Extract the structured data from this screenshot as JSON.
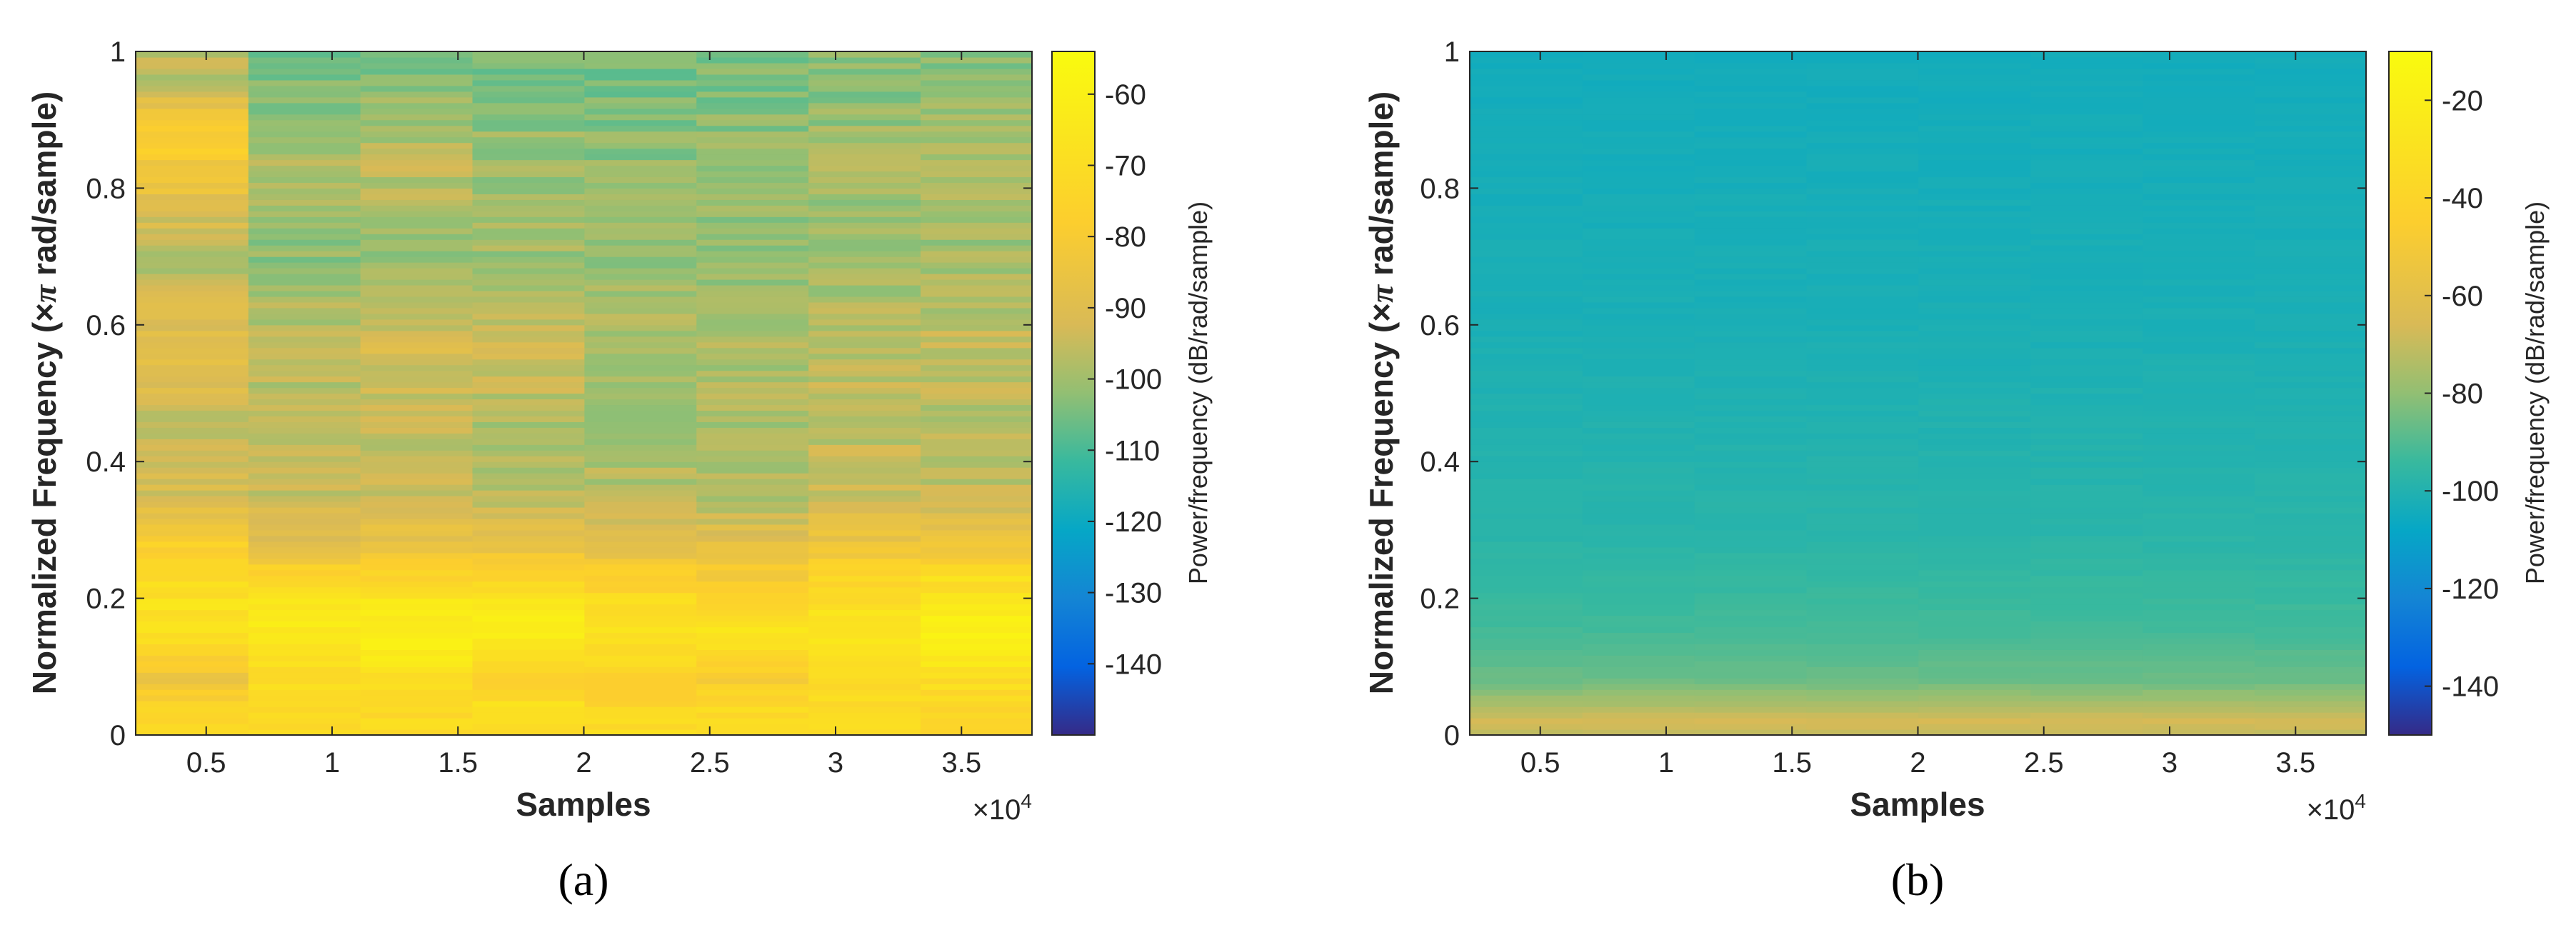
{
  "chart_data": [
    {
      "type": "heatmap",
      "panel_label": "(a)",
      "xlabel": "Samples",
      "xscale_label": "×10",
      "xscale_exponent": "4",
      "ylabel_prefix": "Normalized Frequency  (×",
      "ylabel_pi": "π",
      "ylabel_suffix": " rad/sample)",
      "colorbar_label": "Power/frequency (dB/rad/sample)",
      "xlim": [
        0.22,
        3.78
      ],
      "ylim": [
        0,
        1
      ],
      "xticks": [
        0.5,
        1,
        1.5,
        2,
        2.5,
        3,
        3.5
      ],
      "xtick_labels": [
        "0.5",
        "1",
        "1.5",
        "2",
        "2.5",
        "3",
        "3.5"
      ],
      "yticks": [
        0,
        0.2,
        0.4,
        0.6,
        0.8,
        1
      ],
      "ytick_labels": [
        "0",
        "0.2",
        "0.4",
        "0.6",
        "0.8",
        "1"
      ],
      "clim": [
        -150,
        -54
      ],
      "cticks": [
        -140,
        -130,
        -120,
        -110,
        -100,
        -90,
        -80,
        -70,
        -60
      ],
      "ctick_labels": [
        "-140",
        "-130",
        "-120",
        "-110",
        "-100",
        "-90",
        "-80",
        "-70",
        "-60"
      ],
      "segment_centers": [
        0.445,
        0.89,
        1.335,
        1.78,
        2.225,
        2.67,
        3.115,
        3.56
      ],
      "bands": [
        {
          "freq": 0.04,
          "power": [
            -72,
            -70,
            -71,
            -69,
            -72,
            -71,
            -70,
            -72
          ]
        },
        {
          "freq": 0.08,
          "power": [
            -86,
            -70,
            -70,
            -75,
            -80,
            -78,
            -72,
            -70
          ]
        },
        {
          "freq": 0.12,
          "power": [
            -74,
            -66,
            -64,
            -66,
            -70,
            -72,
            -66,
            -64
          ]
        },
        {
          "freq": 0.155,
          "power": [
            -66,
            -62,
            -60,
            -62,
            -68,
            -66,
            -64,
            -60
          ]
        },
        {
          "freq": 0.19,
          "power": [
            -68,
            -66,
            -64,
            -64,
            -70,
            -72,
            -70,
            -66
          ]
        },
        {
          "freq": 0.235,
          "power": [
            -72,
            -74,
            -76,
            -76,
            -78,
            -80,
            -76,
            -70
          ]
        },
        {
          "freq": 0.28,
          "power": [
            -78,
            -88,
            -86,
            -86,
            -90,
            -88,
            -84,
            -84
          ]
        },
        {
          "freq": 0.35,
          "power": [
            -92,
            -95,
            -94,
            -96,
            -97,
            -98,
            -94,
            -96
          ]
        },
        {
          "freq": 0.45,
          "power": [
            -95,
            -98,
            -96,
            -98,
            -100,
            -99,
            -96,
            -97
          ]
        },
        {
          "freq": 0.57,
          "power": [
            -88,
            -96,
            -92,
            -94,
            -98,
            -98,
            -96,
            -95
          ]
        },
        {
          "freq": 0.7,
          "power": [
            -98,
            -102,
            -100,
            -100,
            -101,
            -102,
            -101,
            -100
          ]
        },
        {
          "freq": 0.84,
          "power": [
            -82,
            -98,
            -96,
            -100,
            -102,
            -101,
            -99,
            -98
          ]
        },
        {
          "freq": 0.87,
          "power": [
            -76,
            -100,
            -98,
            -101,
            -103,
            -102,
            -100,
            -99
          ]
        },
        {
          "freq": 0.96,
          "power": [
            -96,
            -104,
            -103,
            -104,
            -105,
            -104,
            -103,
            -103
          ]
        }
      ]
    },
    {
      "type": "heatmap",
      "panel_label": "(b)",
      "xlabel": "Samples",
      "xscale_label": "×10",
      "xscale_exponent": "4",
      "ylabel_prefix": "Normalized Frequency  (×",
      "ylabel_pi": "π",
      "ylabel_suffix": " rad/sample)",
      "colorbar_label": "Power/frequency (dB/rad/sample)",
      "xlim": [
        0.22,
        3.78
      ],
      "ylim": [
        0,
        1
      ],
      "xticks": [
        0.5,
        1,
        1.5,
        2,
        2.5,
        3,
        3.5
      ],
      "xtick_labels": [
        "0.5",
        "1",
        "1.5",
        "2",
        "2.5",
        "3",
        "3.5"
      ],
      "yticks": [
        0,
        0.2,
        0.4,
        0.6,
        0.8,
        1
      ],
      "ytick_labels": [
        "0",
        "0.2",
        "0.4",
        "0.6",
        "0.8",
        "1"
      ],
      "clim": [
        -150,
        -10
      ],
      "cticks": [
        -140,
        -120,
        -100,
        -80,
        -60,
        -40,
        -20
      ],
      "ctick_labels": [
        "-140",
        "-120",
        "-100",
        "-80",
        "-60",
        "-40",
        "-20"
      ],
      "segment_centers": [
        0.445,
        0.89,
        1.335,
        1.78,
        2.225,
        2.67,
        3.115,
        3.56
      ],
      "bands": [
        {
          "freq": 0.005,
          "power": [
            -70,
            -70,
            -70,
            -70,
            -70,
            -70,
            -70,
            -70
          ]
        },
        {
          "freq": 0.02,
          "power": [
            -66,
            -66,
            -66,
            -66,
            -66,
            -66,
            -66,
            -66
          ]
        },
        {
          "freq": 0.04,
          "power": [
            -74,
            -74,
            -74,
            -74,
            -74,
            -74,
            -74,
            -74
          ]
        },
        {
          "freq": 0.08,
          "power": [
            -86,
            -86,
            -86,
            -86,
            -86,
            -86,
            -86,
            -86
          ]
        },
        {
          "freq": 0.15,
          "power": [
            -92,
            -92,
            -92,
            -92,
            -92,
            -92,
            -92,
            -92
          ]
        },
        {
          "freq": 0.3,
          "power": [
            -98,
            -98,
            -98,
            -98,
            -98,
            -98,
            -98,
            -98
          ]
        },
        {
          "freq": 0.6,
          "power": [
            -102,
            -102,
            -102,
            -102,
            -102,
            -102,
            -102,
            -102
          ]
        },
        {
          "freq": 0.95,
          "power": [
            -104,
            -104,
            -104,
            -104,
            -104,
            -104,
            -104,
            -104
          ]
        }
      ]
    }
  ]
}
